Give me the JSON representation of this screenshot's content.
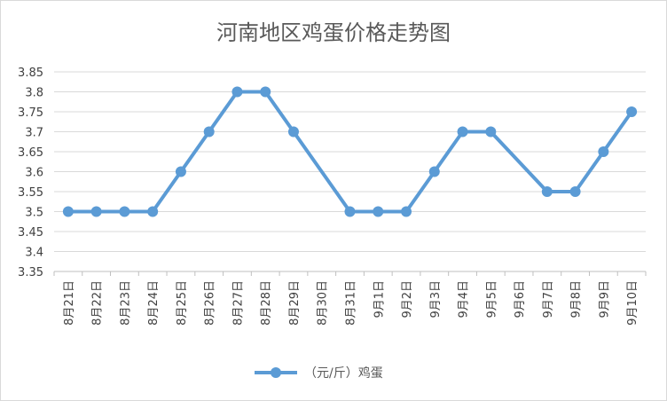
{
  "chart_data": {
    "type": "line",
    "title": "河南地区鸡蛋价格走势图",
    "categories": [
      "8月21日",
      "8月22日",
      "8月23日",
      "8月24日",
      "8月25日",
      "8月26日",
      "8月27日",
      "8月28日",
      "8月29日",
      "8月30日",
      "8月31日",
      "9月1日",
      "9月2日",
      "9月3日",
      "9月4日",
      "9月5日",
      "9月6日",
      "9月7日",
      "9月8日",
      "9月9日",
      "9月10日"
    ],
    "series": [
      {
        "name": "（元/斤）鸡蛋",
        "values": [
          3.5,
          3.5,
          3.5,
          3.5,
          3.6,
          3.7,
          3.8,
          3.8,
          3.7,
          null,
          3.5,
          3.5,
          3.5,
          3.6,
          3.7,
          3.7,
          null,
          3.55,
          3.55,
          3.65,
          3.75
        ],
        "color": "#5b9bd5"
      }
    ],
    "ylim": [
      3.35,
      3.85
    ],
    "yticks": [
      "3.35",
      "3.4",
      "3.45",
      "3.5",
      "3.55",
      "3.6",
      "3.65",
      "3.7",
      "3.75",
      "3.8",
      "3.85"
    ],
    "grid": true,
    "legend_position": "bottom"
  }
}
